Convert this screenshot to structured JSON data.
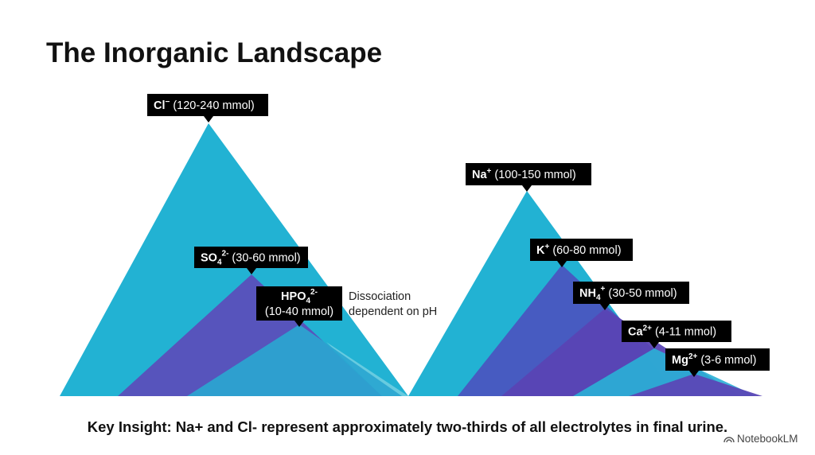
{
  "title": "The Inorganic Landscape",
  "labels": [
    {
      "ion": "Cl",
      "sup": "−",
      "range": "(120-240 mmol)"
    },
    {
      "ion": "SO",
      "sub": "4",
      "sup": "2-",
      "range": "(30-60 mmol)"
    },
    {
      "ion": "HPO",
      "sub": "4",
      "sup": "2-",
      "range": "(10-40 mmol)"
    },
    {
      "ion": "Na",
      "sup": "+",
      "range": "(100-150 mmol)"
    },
    {
      "ion": "K",
      "sup": "+",
      "range": "(60-80 mmol)"
    },
    {
      "ion": "NH",
      "sub": "4",
      "sup": "+",
      "range": "(30-50 mmol)"
    },
    {
      "ion": "Ca",
      "sup": "2+",
      "range": "(4-11 mmol)"
    },
    {
      "ion": "Mg",
      "sup": "2+",
      "range": "(3-6 mmol)"
    }
  ],
  "annotation": [
    "Dissociation",
    "dependent on pH"
  ],
  "insight": "Key Insight: Na+ and Cl- represent approximately two-thirds of all electrolytes in final urine.",
  "brand": "NotebookLM"
}
